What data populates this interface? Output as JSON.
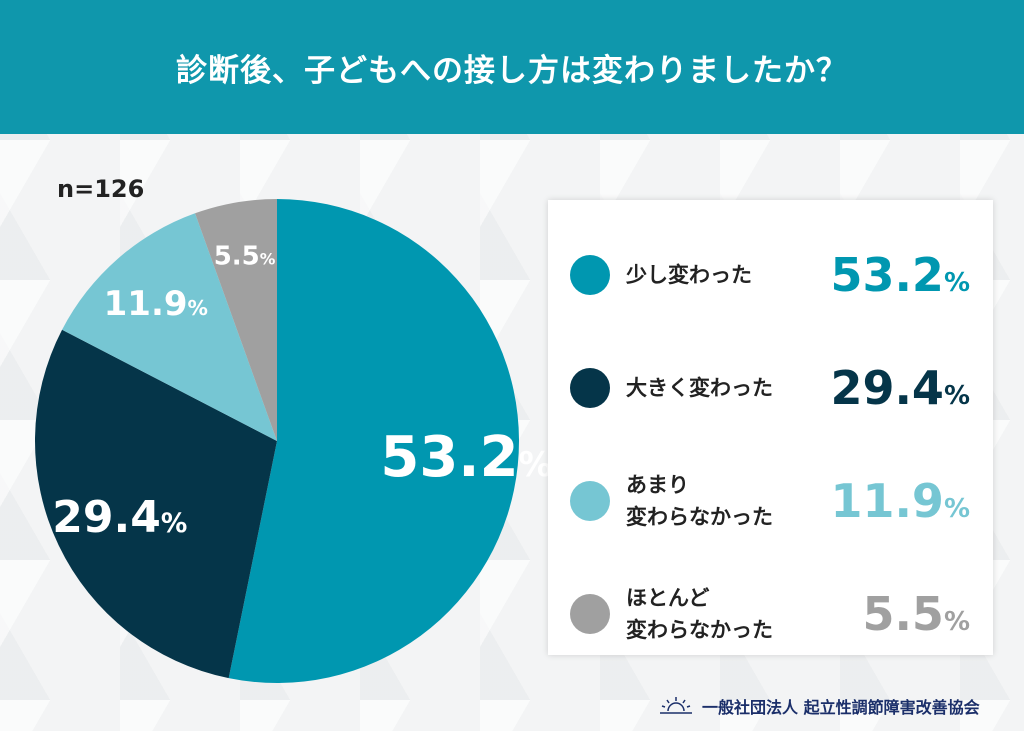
{
  "title": "診断後、子どもへの接し方は変わりましたか？",
  "sample": "n=126",
  "chart_data": {
    "type": "pie",
    "title": "診断後、子どもへの接し方は変わりましたか？",
    "unit": "%",
    "slices": [
      {
        "label": "少し変わった",
        "value": 53.2,
        "color": "#0097b0",
        "label_color": "#0097b0"
      },
      {
        "label": "大きく変わった",
        "value": 29.4,
        "color": "#053549",
        "label_color": "#053549"
      },
      {
        "label": "あまり\n変わらなかった",
        "value": 11.9,
        "color": "#76c6d3",
        "label_color": "#76c6d3"
      },
      {
        "label": "ほとんど\n変わらなかった",
        "value": 5.5,
        "color": "#a0a0a0",
        "label_color": "#a0a0a0"
      }
    ],
    "legend": "right"
  },
  "footer": {
    "org": "一般社団法人 起立性調節障害改善協会",
    "logo": "sunrise-logo"
  }
}
